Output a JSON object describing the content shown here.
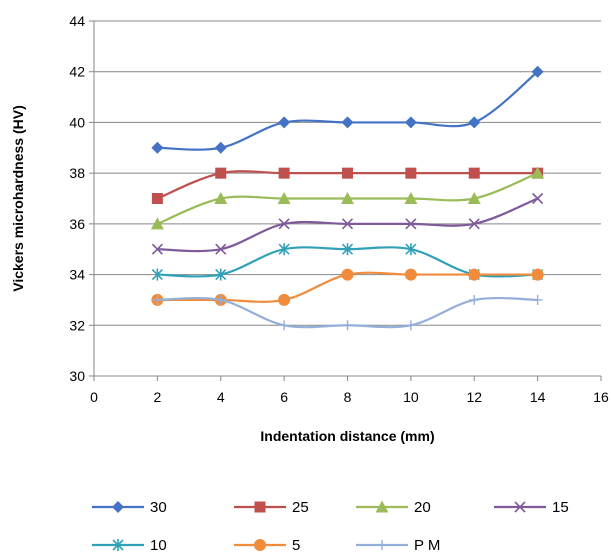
{
  "chart_data": {
    "type": "line",
    "title": "",
    "xlabel": "Indentation distance (mm)",
    "ylabel": "Vickers microhardness (HV)",
    "xlim": [
      0,
      16
    ],
    "ylim": [
      30,
      44
    ],
    "x_ticks": [
      0,
      2,
      4,
      6,
      8,
      10,
      12,
      14,
      16
    ],
    "y_ticks": [
      30,
      32,
      34,
      36,
      38,
      40,
      42,
      44
    ],
    "grid": "horizontal",
    "legend_position": "bottom",
    "smoothed": true,
    "x": [
      2,
      4,
      6,
      8,
      10,
      12,
      14
    ],
    "series": [
      {
        "name": "30",
        "values": [
          39,
          39,
          40,
          40,
          40,
          40,
          42
        ],
        "color": "#4472C4",
        "marker": "diamond"
      },
      {
        "name": "25",
        "values": [
          37,
          38,
          38,
          38,
          38,
          38,
          38
        ],
        "color": "#C0504D",
        "marker": "square"
      },
      {
        "name": "20",
        "values": [
          36,
          37,
          37,
          37,
          37,
          37,
          38
        ],
        "color": "#9BBB59",
        "marker": "triangle"
      },
      {
        "name": "15",
        "values": [
          35,
          35,
          36,
          36,
          36,
          36,
          37
        ],
        "color": "#7E5A9B",
        "marker": "x"
      },
      {
        "name": "10",
        "values": [
          34,
          34,
          35,
          35,
          35,
          34,
          34
        ],
        "color": "#31A1B8",
        "marker": "star"
      },
      {
        "name": "5",
        "values": [
          33,
          33,
          33,
          34,
          34,
          34,
          34
        ],
        "color": "#F08C3C",
        "marker": "circle"
      },
      {
        "name": "P M",
        "values": [
          33,
          33,
          32,
          32,
          32,
          33,
          33
        ],
        "color": "#94AFD8",
        "marker": "plus"
      }
    ]
  }
}
